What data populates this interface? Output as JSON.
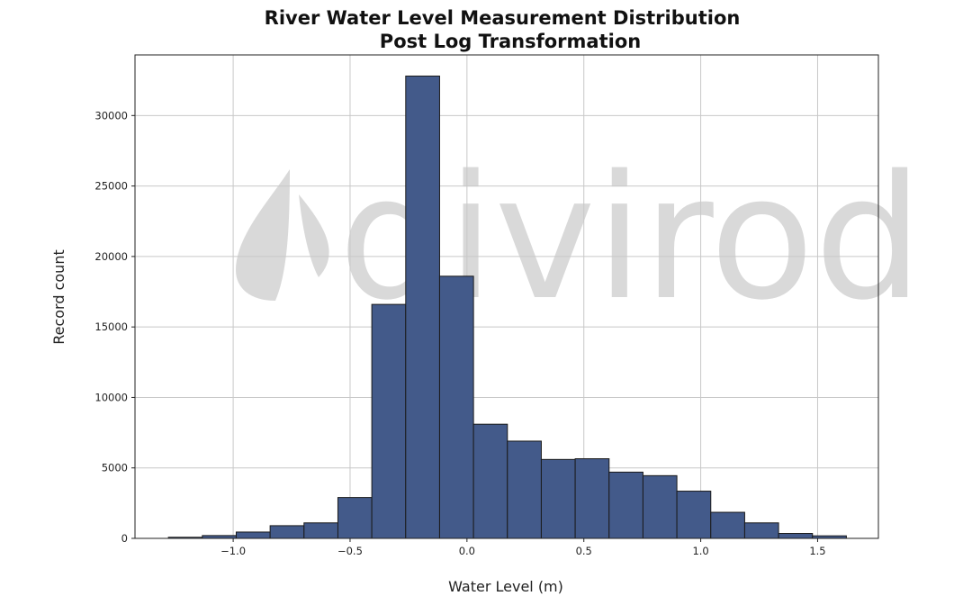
{
  "chart_data": {
    "type": "bar",
    "title_line1": "River Water Level Measurement Distribution",
    "title_line2": "Post Log Transformation",
    "xlabel": "Water Level (m)",
    "ylabel": "Record count",
    "xlim": [
      -1.42,
      1.76
    ],
    "ylim": [
      0,
      34300
    ],
    "xticks": [
      -1.0,
      -0.5,
      0.0,
      0.5,
      1.0,
      1.5
    ],
    "xtick_labels": [
      "−1.0",
      "−0.5",
      "0.0",
      "0.5",
      "1.0",
      "1.5"
    ],
    "yticks": [
      0,
      5000,
      10000,
      15000,
      20000,
      25000,
      30000
    ],
    "ytick_labels": [
      "0",
      "5000",
      "10000",
      "15000",
      "20000",
      "25000",
      "30000"
    ],
    "grid": true,
    "bar_color": "#435a8a",
    "edge_color": "#1a1a1a",
    "bins": [
      {
        "x0": -1.277,
        "x1": -1.132,
        "count": 80
      },
      {
        "x0": -1.132,
        "x1": -0.987,
        "count": 200
      },
      {
        "x0": -0.987,
        "x1": -0.842,
        "count": 450
      },
      {
        "x0": -0.842,
        "x1": -0.697,
        "count": 900
      },
      {
        "x0": -0.697,
        "x1": -0.552,
        "count": 1100
      },
      {
        "x0": -0.552,
        "x1": -0.407,
        "count": 2900
      },
      {
        "x0": -0.407,
        "x1": -0.262,
        "count": 16600
      },
      {
        "x0": -0.262,
        "x1": -0.117,
        "count": 32800
      },
      {
        "x0": -0.117,
        "x1": 0.028,
        "count": 18600
      },
      {
        "x0": 0.028,
        "x1": 0.173,
        "count": 8100
      },
      {
        "x0": 0.173,
        "x1": 0.318,
        "count": 6900
      },
      {
        "x0": 0.318,
        "x1": 0.463,
        "count": 5600
      },
      {
        "x0": 0.463,
        "x1": 0.608,
        "count": 5650
      },
      {
        "x0": 0.608,
        "x1": 0.753,
        "count": 4700
      },
      {
        "x0": 0.753,
        "x1": 0.898,
        "count": 4450
      },
      {
        "x0": 0.898,
        "x1": 1.043,
        "count": 3350
      },
      {
        "x0": 1.043,
        "x1": 1.188,
        "count": 1850
      },
      {
        "x0": 1.188,
        "x1": 1.333,
        "count": 1100
      },
      {
        "x0": 1.333,
        "x1": 1.478,
        "count": 350
      },
      {
        "x0": 1.478,
        "x1": 1.623,
        "count": 180
      }
    ]
  },
  "watermark": {
    "text": "divirod",
    "color": "#d9d9d9"
  }
}
